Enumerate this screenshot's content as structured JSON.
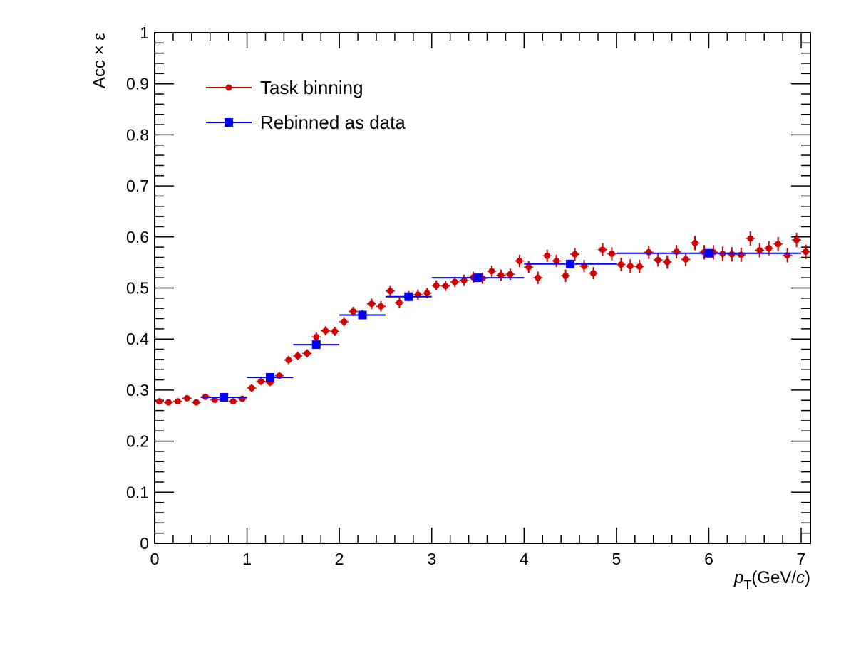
{
  "chart_data": {
    "type": "scatter",
    "title": "",
    "xlabel": "p_T(GeV/c)",
    "xlabel_parts": {
      "italic_symbol": "p",
      "subscript": "T",
      "unit_open": "(GeV/",
      "unit_italic": "c",
      "unit_close": ")"
    },
    "ylabel": "Acc × ε",
    "xlim": [
      0,
      7.1
    ],
    "ylim": [
      0,
      1
    ],
    "x_ticks": [
      0,
      1,
      2,
      3,
      4,
      5,
      6,
      7
    ],
    "y_ticks": [
      0,
      0.1,
      0.2,
      0.3,
      0.4,
      0.5,
      0.6,
      0.7,
      0.8,
      0.9,
      1
    ],
    "y_tick_labels": [
      "0",
      "0.1",
      "0.2",
      "0.3",
      "0.4",
      "0.5",
      "0.6",
      "0.7",
      "0.8",
      "0.9",
      "1"
    ],
    "x_tick_labels": [
      "0",
      "1",
      "2",
      "3",
      "4",
      "5",
      "6",
      "7"
    ],
    "grid": false,
    "legend_position": "top-left",
    "series": [
      {
        "name": "Task binning",
        "color": "#d10000",
        "marker": "circle",
        "x_halfwidth": 0.05,
        "x": [
          0.05,
          0.15,
          0.25,
          0.35,
          0.45,
          0.55,
          0.65,
          0.75,
          0.85,
          0.95,
          1.05,
          1.15,
          1.25,
          1.35,
          1.45,
          1.55,
          1.65,
          1.75,
          1.85,
          1.95,
          2.05,
          2.15,
          2.25,
          2.35,
          2.45,
          2.55,
          2.65,
          2.75,
          2.85,
          2.95,
          3.05,
          3.15,
          3.25,
          3.35,
          3.45,
          3.55,
          3.65,
          3.75,
          3.85,
          3.95,
          4.05,
          4.15,
          4.25,
          4.35,
          4.45,
          4.55,
          4.65,
          4.75,
          4.85,
          4.95,
          5.05,
          5.15,
          5.25,
          5.35,
          5.45,
          5.55,
          5.65,
          5.75,
          5.85,
          5.95,
          6.05,
          6.15,
          6.25,
          6.35,
          6.45,
          6.55,
          6.65,
          6.75,
          6.85,
          6.95,
          7.05
        ],
        "y": [
          0.278,
          0.276,
          0.278,
          0.284,
          0.276,
          0.287,
          0.281,
          0.286,
          0.278,
          0.283,
          0.304,
          0.317,
          0.315,
          0.328,
          0.359,
          0.367,
          0.372,
          0.404,
          0.416,
          0.415,
          0.434,
          0.454,
          0.448,
          0.469,
          0.464,
          0.494,
          0.471,
          0.484,
          0.487,
          0.49,
          0.505,
          0.504,
          0.512,
          0.515,
          0.521,
          0.519,
          0.533,
          0.525,
          0.527,
          0.553,
          0.541,
          0.52,
          0.563,
          0.553,
          0.524,
          0.566,
          0.543,
          0.529,
          0.575,
          0.567,
          0.546,
          0.543,
          0.542,
          0.57,
          0.555,
          0.551,
          0.571,
          0.556,
          0.588,
          0.57,
          0.57,
          0.567,
          0.566,
          0.565,
          0.597,
          0.574,
          0.578,
          0.586,
          0.564,
          0.594,
          0.571
        ],
        "y_err": [
          0.005,
          0.005,
          0.005,
          0.006,
          0.005,
          0.006,
          0.006,
          0.006,
          0.006,
          0.006,
          0.007,
          0.007,
          0.007,
          0.007,
          0.008,
          0.008,
          0.008,
          0.009,
          0.009,
          0.009,
          0.009,
          0.009,
          0.009,
          0.01,
          0.01,
          0.01,
          0.01,
          0.01,
          0.01,
          0.01,
          0.01,
          0.01,
          0.01,
          0.011,
          0.011,
          0.011,
          0.011,
          0.011,
          0.011,
          0.012,
          0.012,
          0.012,
          0.012,
          0.012,
          0.012,
          0.012,
          0.012,
          0.012,
          0.013,
          0.013,
          0.013,
          0.013,
          0.013,
          0.013,
          0.013,
          0.013,
          0.013,
          0.013,
          0.014,
          0.014,
          0.014,
          0.014,
          0.014,
          0.014,
          0.014,
          0.014,
          0.014,
          0.014,
          0.014,
          0.014,
          0.014
        ]
      },
      {
        "name": "Rebinned as data",
        "color": "#0000ff",
        "marker": "square",
        "x": [
          0.75,
          1.25,
          1.75,
          2.25,
          2.75,
          3.5,
          4.5,
          6.0
        ],
        "x_low": [
          0.5,
          1.0,
          1.5,
          2.0,
          2.5,
          3.0,
          4.0,
          5.0
        ],
        "x_high": [
          1.0,
          1.5,
          2.0,
          2.5,
          3.0,
          4.0,
          5.0,
          7.0
        ],
        "y": [
          0.286,
          0.325,
          0.389,
          0.447,
          0.483,
          0.52,
          0.547,
          0.568
        ],
        "y_err": [
          0.004,
          0.004,
          0.004,
          0.005,
          0.005,
          0.004,
          0.004,
          0.004
        ]
      }
    ]
  }
}
